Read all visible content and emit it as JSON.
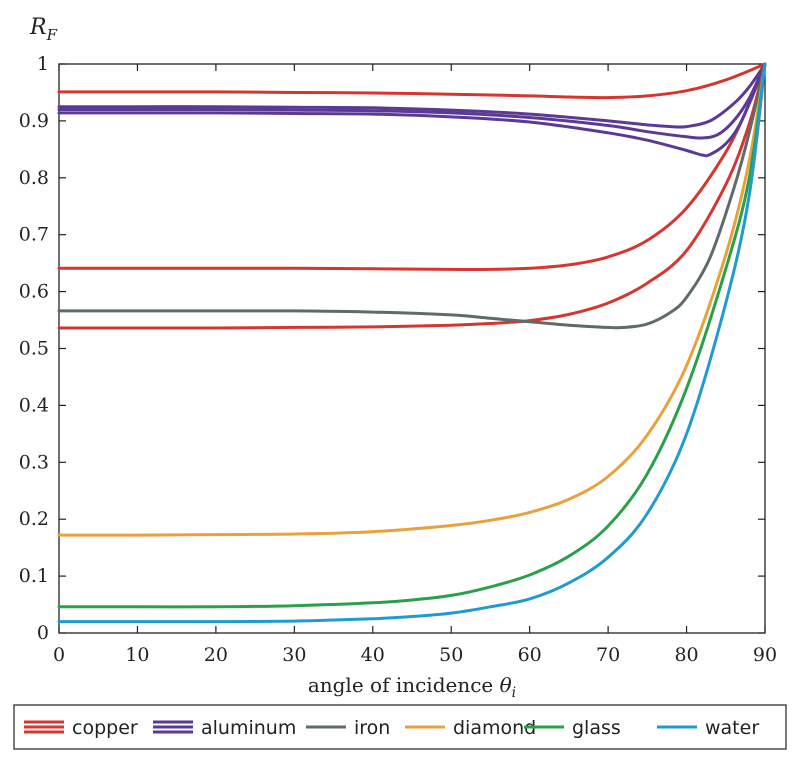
{
  "chart_data": {
    "type": "line",
    "title": "",
    "xlabel": "angle of incidence θi",
    "xlabel_main": "angle of incidence ",
    "xlabel_symbol": "θ",
    "xlabel_sub": "i",
    "ylabel": "RF",
    "ylabel_main": "R",
    "ylabel_sub": "F",
    "xlim": [
      0,
      90
    ],
    "ylim": [
      0,
      1
    ],
    "xticks": [
      0,
      10,
      20,
      30,
      40,
      50,
      60,
      70,
      80,
      90
    ],
    "yticks": [
      0,
      0.1,
      0.2,
      0.3,
      0.4,
      0.5,
      0.6,
      0.7,
      0.8,
      0.9,
      1
    ],
    "ytick_labels": [
      "0",
      "0.1",
      "0.2",
      "0.3",
      "0.4",
      "0.5",
      "0.6",
      "0.7",
      "0.8",
      "0.9",
      "1"
    ],
    "xtick_labels": [
      "0",
      "10",
      "20",
      "30",
      "40",
      "50",
      "60",
      "70",
      "80",
      "90"
    ],
    "grid": false,
    "legend": [
      {
        "label": "copper",
        "color": "#d7352f",
        "style": "triple"
      },
      {
        "label": "aluminum",
        "color": "#5b3a96",
        "style": "triple"
      },
      {
        "label": "iron",
        "color": "#5f6b6b",
        "style": "single"
      },
      {
        "label": "diamond",
        "color": "#e9a13d",
        "style": "single"
      },
      {
        "label": "glass",
        "color": "#2aa04a",
        "style": "single"
      },
      {
        "label": "water",
        "color": "#1f9bd1",
        "style": "single"
      }
    ],
    "series": [
      {
        "name": "copper (1)",
        "color": "#d7352f",
        "x": [
          0,
          10,
          20,
          30,
          40,
          50,
          60,
          65,
          70,
          75,
          80,
          85,
          90
        ],
        "y": [
          0.951,
          0.951,
          0.951,
          0.95,
          0.949,
          0.947,
          0.944,
          0.942,
          0.941,
          0.944,
          0.953,
          0.972,
          1.0
        ]
      },
      {
        "name": "copper (2)",
        "color": "#d7352f",
        "x": [
          0,
          10,
          20,
          30,
          40,
          50,
          55,
          60,
          65,
          70,
          75,
          80,
          85,
          88,
          90
        ],
        "y": [
          0.641,
          0.641,
          0.641,
          0.641,
          0.64,
          0.639,
          0.639,
          0.641,
          0.647,
          0.661,
          0.69,
          0.747,
          0.845,
          0.93,
          1.0
        ]
      },
      {
        "name": "copper (3)",
        "color": "#d7352f",
        "x": [
          0,
          10,
          20,
          30,
          40,
          50,
          55,
          60,
          65,
          70,
          75,
          80,
          85,
          88,
          90
        ],
        "y": [
          0.536,
          0.536,
          0.536,
          0.537,
          0.538,
          0.541,
          0.544,
          0.549,
          0.56,
          0.58,
          0.615,
          0.672,
          0.788,
          0.895,
          1.0
        ]
      },
      {
        "name": "aluminum (1)",
        "color": "#5b3a96",
        "x": [
          0,
          10,
          20,
          30,
          40,
          50,
          60,
          70,
          75,
          78,
          80,
          83,
          86,
          88,
          90
        ],
        "y": [
          0.925,
          0.925,
          0.925,
          0.924,
          0.923,
          0.919,
          0.912,
          0.9,
          0.893,
          0.89,
          0.89,
          0.9,
          0.93,
          0.96,
          1.0
        ]
      },
      {
        "name": "aluminum (2)",
        "color": "#5b3a96",
        "x": [
          0,
          10,
          20,
          30,
          40,
          50,
          60,
          70,
          75,
          80,
          82,
          84,
          86,
          88,
          90
        ],
        "y": [
          0.92,
          0.92,
          0.92,
          0.919,
          0.918,
          0.914,
          0.906,
          0.892,
          0.881,
          0.872,
          0.87,
          0.876,
          0.9,
          0.94,
          1.0
        ]
      },
      {
        "name": "aluminum (3)",
        "color": "#5b3a96",
        "x": [
          0,
          10,
          20,
          30,
          40,
          50,
          60,
          70,
          75,
          80,
          82,
          83,
          85,
          87,
          90
        ],
        "y": [
          0.914,
          0.914,
          0.914,
          0.913,
          0.912,
          0.907,
          0.898,
          0.879,
          0.866,
          0.848,
          0.84,
          0.841,
          0.86,
          0.9,
          1.0
        ]
      },
      {
        "name": "iron",
        "color": "#5f6b6b",
        "x": [
          0,
          10,
          20,
          30,
          40,
          50,
          55,
          60,
          65,
          70,
          72,
          75,
          78,
          80,
          83,
          86,
          88,
          90
        ],
        "y": [
          0.566,
          0.566,
          0.566,
          0.566,
          0.564,
          0.559,
          0.553,
          0.547,
          0.541,
          0.537,
          0.537,
          0.543,
          0.564,
          0.59,
          0.66,
          0.78,
          0.88,
          1.0
        ]
      },
      {
        "name": "diamond",
        "color": "#e9a13d",
        "x": [
          0,
          10,
          20,
          30,
          40,
          50,
          55,
          60,
          65,
          70,
          75,
          80,
          85,
          88,
          90
        ],
        "y": [
          0.172,
          0.172,
          0.173,
          0.174,
          0.178,
          0.189,
          0.198,
          0.212,
          0.235,
          0.275,
          0.348,
          0.47,
          0.665,
          0.83,
          1.0
        ]
      },
      {
        "name": "glass",
        "color": "#2aa04a",
        "x": [
          0,
          10,
          20,
          30,
          40,
          45,
          50,
          55,
          60,
          65,
          70,
          75,
          80,
          85,
          88,
          90
        ],
        "y": [
          0.046,
          0.046,
          0.046,
          0.048,
          0.053,
          0.058,
          0.066,
          0.081,
          0.102,
          0.135,
          0.188,
          0.28,
          0.43,
          0.64,
          0.8,
          1.0
        ]
      },
      {
        "name": "water",
        "color": "#1f9bd1",
        "x": [
          0,
          10,
          20,
          30,
          40,
          45,
          50,
          55,
          60,
          65,
          70,
          75,
          80,
          85,
          88,
          90
        ],
        "y": [
          0.02,
          0.02,
          0.02,
          0.021,
          0.025,
          0.029,
          0.035,
          0.046,
          0.06,
          0.088,
          0.133,
          0.21,
          0.35,
          0.58,
          0.77,
          1.0
        ]
      }
    ]
  }
}
